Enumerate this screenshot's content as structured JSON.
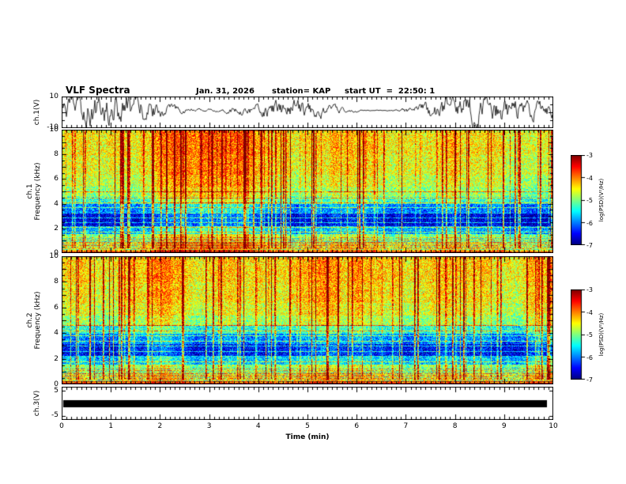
{
  "header": {
    "title": "VLF Spectra",
    "date": "Jan. 31, 2026",
    "station": "station= KAP",
    "start_ut": "start UT  =  22:50: 1"
  },
  "panels": {
    "ch1_wave": {
      "ylabel": "ch.1(V)",
      "ytick_top": "10",
      "ytick_bottom": "-10"
    },
    "ch1_spec": {
      "ylabel_line1": "ch.1",
      "ylabel_line2": "Frequency (kHz)"
    },
    "ch2_spec": {
      "ylabel_line1": "ch.2",
      "ylabel_line2": "Frequency (kHz)"
    },
    "ch3_wave": {
      "ylabel": "ch.3(V)",
      "ytick_top": "5",
      "ytick_bottom": "-5"
    }
  },
  "xaxis": {
    "label": "Time (min)",
    "ticks": [
      "0",
      "1",
      "2",
      "3",
      "4",
      "5",
      "6",
      "7",
      "8",
      "9",
      "10"
    ]
  },
  "yaxis_spec": {
    "ticks": [
      "10",
      "8",
      "6",
      "4",
      "2",
      "0"
    ]
  },
  "colorbar": {
    "label": "log(PSD)(V²/Hz)",
    "ticks": [
      "-3",
      "-4",
      "-5",
      "-6",
      "-7"
    ],
    "zlim": [
      -7,
      -3
    ],
    "colormap": "jet"
  },
  "chart_data": [
    {
      "type": "line",
      "name": "ch1-amplitude",
      "ylabel": "ch.1(V)",
      "ylim": [
        -10,
        10
      ],
      "xlim": [
        0,
        10
      ],
      "xlabel": "Time (min)",
      "seed": 12345,
      "description": "Continuous noisy VLF amplitude trace spanning the full 10 minutes, rapid oscillations roughly between -6 and +8 V"
    },
    {
      "type": "heatmap",
      "name": "ch1-spectrogram",
      "ylabel": "ch.1 Frequency (kHz)",
      "xlim": [
        0,
        10
      ],
      "ylim": [
        0,
        10
      ],
      "zlabel": "log(PSD)(V²/Hz)",
      "zlim": [
        -7,
        -3
      ],
      "colormap": "jet",
      "seed": 777,
      "streak_count": 95,
      "h_lines": [
        1.7,
        2.1,
        2.5,
        2.9,
        3.3,
        3.7,
        4.1,
        4.5,
        5.0
      ],
      "freq_profile": [
        [
          0,
          0.25,
          -3.8
        ],
        [
          0.25,
          0.9,
          -4.5
        ],
        [
          0.9,
          1.6,
          -4.9
        ],
        [
          1.6,
          2.2,
          -5.7
        ],
        [
          2.2,
          3.3,
          -6.5
        ],
        [
          3.3,
          4.0,
          -5.9
        ],
        [
          4.0,
          4.6,
          -5.2
        ],
        [
          4.6,
          5.4,
          -4.8
        ],
        [
          5.4,
          6.4,
          -4.6
        ],
        [
          6.4,
          8.0,
          -4.45
        ],
        [
          8.0,
          10.01,
          -4.35
        ]
      ],
      "description": "Broadband green background (~ -4.5) with many vertical red sferic streaks, quiet dark-blue band near 2-3.5 kHz, narrow horizontal interference lines, bright red/orange edge below 0.25 kHz"
    },
    {
      "type": "heatmap",
      "name": "ch2-spectrogram",
      "ylabel": "ch.2 Frequency (kHz)",
      "xlim": [
        0,
        10
      ],
      "ylim": [
        0,
        10
      ],
      "zlabel": "log(PSD)(V²/Hz)",
      "zlim": [
        -7,
        -3
      ],
      "colormap": "jet",
      "seed": 1313,
      "streak_count": 90,
      "h_lines": [
        1.8,
        2.2,
        2.6,
        3.0,
        3.4,
        3.8,
        4.2,
        4.6
      ],
      "freq_profile": [
        [
          0,
          0.25,
          -3.8
        ],
        [
          0.25,
          0.9,
          -4.5
        ],
        [
          0.9,
          1.6,
          -4.85
        ],
        [
          1.6,
          2.2,
          -5.6
        ],
        [
          2.2,
          3.2,
          -6.4
        ],
        [
          3.2,
          4.0,
          -5.9
        ],
        [
          4.0,
          4.6,
          -5.3
        ],
        [
          4.6,
          5.4,
          -4.8
        ],
        [
          5.4,
          6.4,
          -4.55
        ],
        [
          6.4,
          8.0,
          -4.4
        ],
        [
          8.0,
          10.01,
          -4.3
        ]
      ],
      "description": "Similar structure to ch.1 spectrogram: green broadband noise, red vertical streaks, dark-blue quiet band near 2-3.2 kHz, horizontal interference lines"
    },
    {
      "type": "line",
      "name": "ch3-amplitude",
      "ylabel": "ch.3(V)",
      "ylim": [
        -6.6,
        6.6
      ],
      "ytick_values": [
        5,
        -5
      ],
      "xlim": [
        0,
        10
      ],
      "description": "Saturated flat black band at ~0 V spanning the full 10 minutes (clipped channel)"
    }
  ]
}
